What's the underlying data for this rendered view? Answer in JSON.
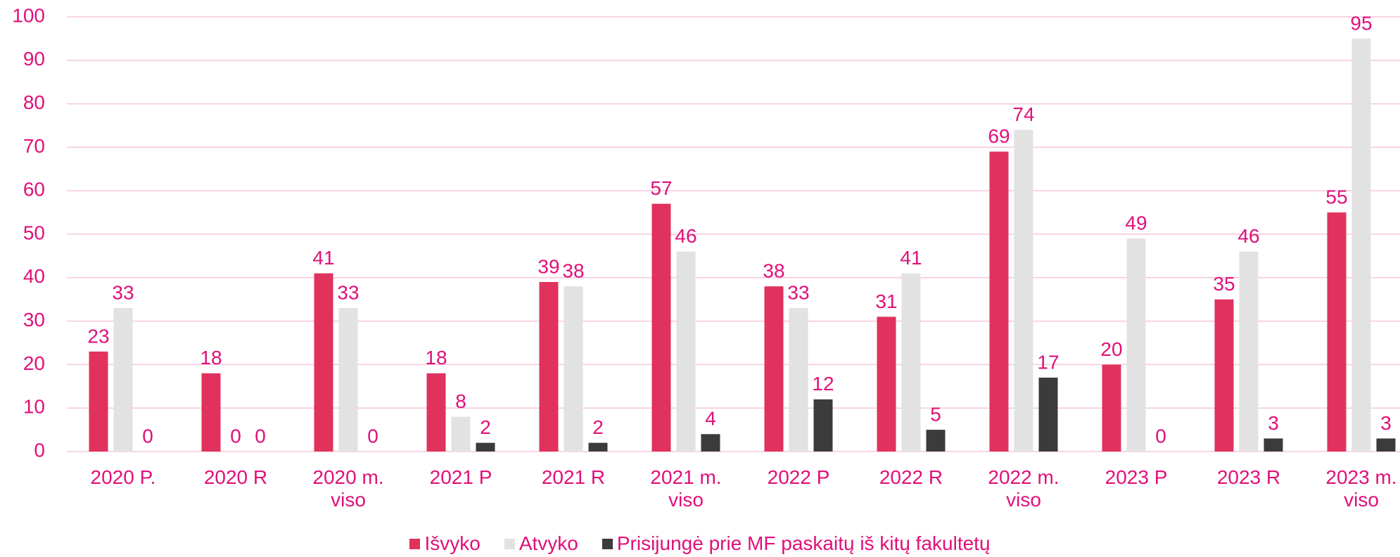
{
  "chart_data": {
    "type": "bar",
    "categories": [
      "2020 P.",
      "2020 R",
      "2020 m. viso",
      "2021 P",
      "2021 R",
      "2021 m. viso",
      "2022 P",
      "2022 R",
      "2022 m. viso",
      "2023 P",
      "2023 R",
      "2023 m. viso"
    ],
    "series": [
      {
        "name": "Išvyko",
        "color": "#e0325d",
        "values": [
          23,
          18,
          41,
          18,
          39,
          57,
          38,
          31,
          69,
          20,
          35,
          55
        ]
      },
      {
        "name": "Atvyko",
        "color": "#e2e2e2",
        "values": [
          33,
          0,
          33,
          8,
          38,
          46,
          33,
          41,
          74,
          49,
          46,
          95
        ]
      },
      {
        "name": "Prisijungė prie MF paskaitų iš kitų fakultetų",
        "color": "#3b3b3b",
        "values": [
          0,
          0,
          0,
          2,
          2,
          4,
          12,
          5,
          17,
          0,
          3,
          3
        ]
      }
    ],
    "ylim": [
      0,
      100
    ],
    "yticks": [
      0,
      10,
      20,
      30,
      40,
      50,
      60,
      70,
      80,
      90,
      100
    ],
    "grid": true,
    "grid_color": "#f7c6da",
    "legend": "bottom"
  }
}
